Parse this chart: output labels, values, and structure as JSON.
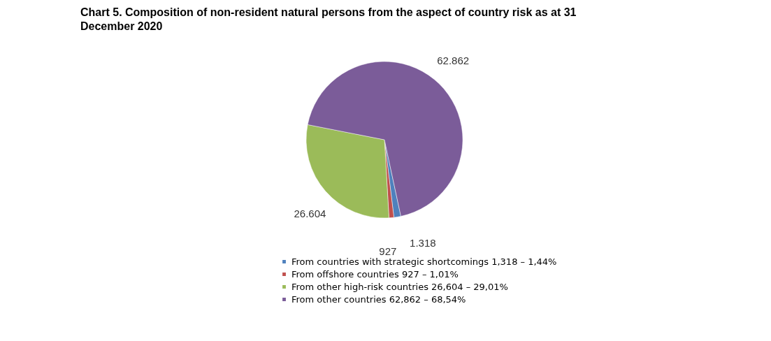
{
  "chart_data": {
    "type": "pie",
    "title": "Chart 5. Composition of non-resident natural persons from the aspect of country risk as at 31 December 2020",
    "categories": [
      "From countries with strategic shortcomings 1,318 – 1,44%",
      "From offshore countries 927 – 1,01%",
      "From other high-risk countries 26,604 – 29,01%",
      "From other countries 62,862 – 68,54%"
    ],
    "values": [
      1318,
      927,
      26604,
      62862
    ],
    "colors": [
      "#4f81bd",
      "#c0504d",
      "#9bbb59",
      "#7b5c99"
    ],
    "value_labels": [
      "1.318",
      "927",
      "26.604",
      "62.862"
    ],
    "legend": "bottom"
  }
}
